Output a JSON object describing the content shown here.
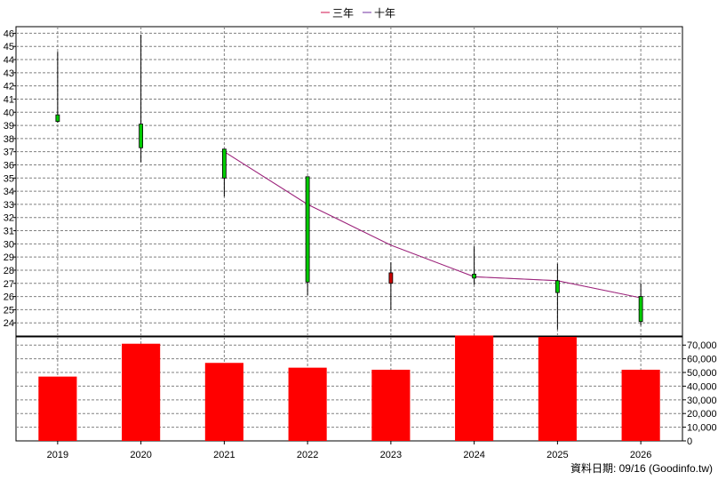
{
  "chart_data": {
    "type": "candlestick+line+bar",
    "categories": [
      "2019",
      "2020",
      "2021",
      "2022",
      "2023",
      "2024",
      "2025",
      "2026"
    ],
    "price_axis": {
      "ylim": [
        23,
        46.5
      ],
      "ticks": [
        24,
        25,
        26,
        27,
        28,
        29,
        30,
        31,
        32,
        33,
        34,
        35,
        36,
        37,
        38,
        39,
        40,
        41,
        42,
        43,
        44,
        45,
        46
      ]
    },
    "volume_axis": {
      "ylim": [
        0,
        76000
      ],
      "ticks": [
        0,
        10000,
        20000,
        30000,
        40000,
        50000,
        60000,
        70000
      ],
      "tick_labels": [
        "0",
        "10,000",
        "20,000",
        "30,000",
        "40,000",
        "50,000",
        "60,000",
        "70,000"
      ]
    },
    "candles": [
      {
        "year": "2019",
        "open": 39.3,
        "close": 39.8,
        "high": 44.6,
        "low": 39.2
      },
      {
        "year": "2020",
        "open": 37.3,
        "close": 39.1,
        "high": 45.9,
        "low": 36.2
      },
      {
        "year": "2021",
        "open": 35.0,
        "close": 37.2,
        "high": 37.2,
        "low": 33.6
      },
      {
        "year": "2022",
        "open": 27.1,
        "close": 35.1,
        "high": 35.1,
        "low": 26.1
      },
      {
        "year": "2023",
        "open": 27.8,
        "close": 27.0,
        "high": 28.6,
        "low": 25.0
      },
      {
        "year": "2024",
        "open": 27.4,
        "close": 27.7,
        "high": 29.8,
        "low": 26.9
      },
      {
        "year": "2025",
        "open": 26.3,
        "close": 27.2,
        "high": 28.5,
        "low": 23.5
      },
      {
        "year": "2026",
        "open": 24.1,
        "close": 26.0,
        "high": 27.0,
        "low": 23.8
      }
    ],
    "series": [
      {
        "name": "三年",
        "color": "#ff0000",
        "values": [
          null,
          null,
          37.0,
          33.0,
          29.9,
          27.5,
          27.2,
          25.9
        ]
      },
      {
        "name": "十年",
        "color": "#7030a0",
        "values": [
          null,
          null,
          37.0,
          33.0,
          29.9,
          27.5,
          27.2,
          25.9
        ]
      }
    ],
    "volume": [
      47000,
      71000,
      57000,
      53500,
      52000,
      77000,
      76000,
      52000
    ],
    "colors": {
      "bar": "#ff0000",
      "candle_up": "#00cc00",
      "candle_down": "#cc0000",
      "grid": "#808080"
    },
    "grid": true,
    "legend_position": "top-center"
  },
  "footer": {
    "text": "資料日期: 09/16  (Goodinfo.tw)"
  }
}
